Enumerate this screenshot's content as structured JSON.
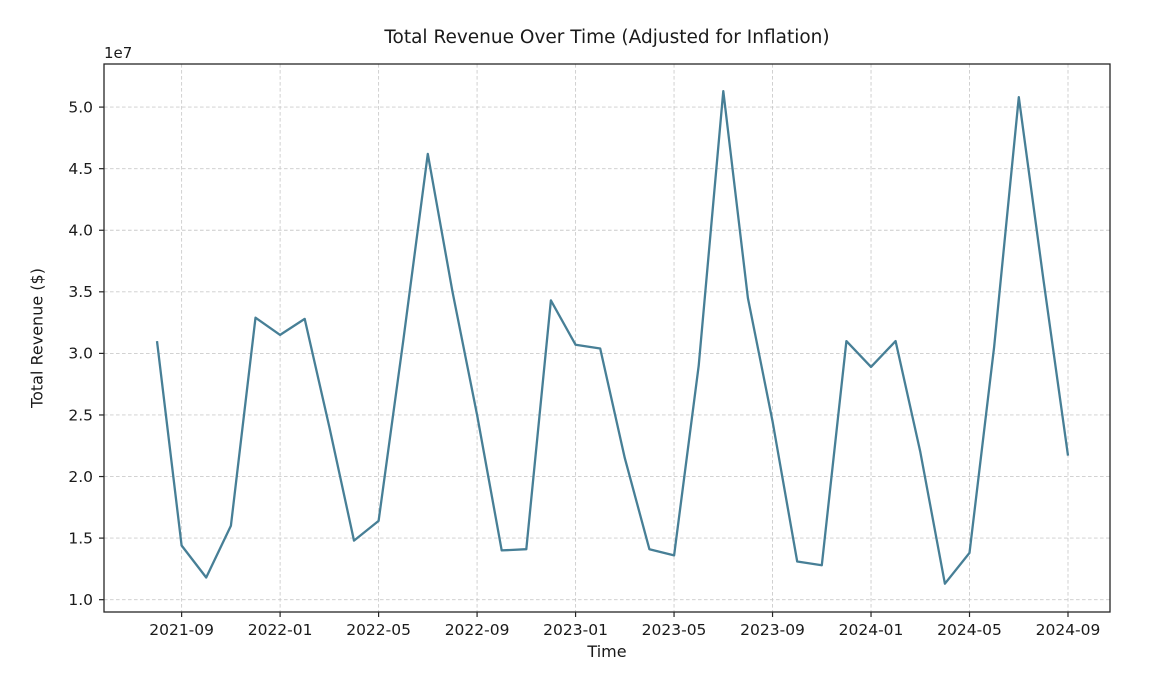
{
  "chart_data": {
    "type": "line",
    "title": "Total Revenue Over Time (Adjusted for Inflation)",
    "xlabel": "Time",
    "ylabel": "Total Revenue ($)",
    "y_offset_label": "1e7",
    "y_unit_multiplier": 10000000,
    "legend": "none",
    "grid": "dashed",
    "background_color": "#ffffff",
    "line_color": "#477F96",
    "axis_color": "#262626",
    "grid_color": "#cccccc",
    "x": [
      "2021-08",
      "2021-09",
      "2021-10",
      "2021-11",
      "2021-12",
      "2022-01",
      "2022-02",
      "2022-03",
      "2022-04",
      "2022-05",
      "2022-06",
      "2022-07",
      "2022-08",
      "2022-09",
      "2022-10",
      "2022-11",
      "2022-12",
      "2023-01",
      "2023-02",
      "2023-03",
      "2023-04",
      "2023-05",
      "2023-06",
      "2023-07",
      "2023-08",
      "2023-09",
      "2023-10",
      "2023-11",
      "2023-12",
      "2024-01",
      "2024-02",
      "2024-03",
      "2024-04",
      "2024-05",
      "2024-06",
      "2024-07",
      "2024-08",
      "2024-09"
    ],
    "values": [
      3.1,
      1.44,
      1.18,
      1.6,
      3.29,
      3.15,
      3.28,
      2.4,
      1.48,
      1.64,
      3.1,
      4.62,
      3.5,
      2.5,
      1.4,
      1.41,
      3.43,
      3.07,
      3.04,
      2.15,
      1.41,
      1.36,
      2.9,
      5.13,
      3.45,
      2.45,
      1.31,
      1.28,
      3.1,
      2.89,
      3.1,
      2.2,
      1.13,
      1.38,
      3.05,
      5.08,
      3.6,
      2.17
    ],
    "x_tick_labels": [
      "2021-09",
      "2022-01",
      "2022-05",
      "2022-09",
      "2023-01",
      "2023-05",
      "2023-09",
      "2024-01",
      "2024-05",
      "2024-09"
    ],
    "y_tick_values": [
      1.0,
      1.5,
      2.0,
      2.5,
      3.0,
      3.5,
      4.0,
      4.5,
      5.0
    ],
    "ylim": [
      0.9,
      5.35
    ]
  }
}
